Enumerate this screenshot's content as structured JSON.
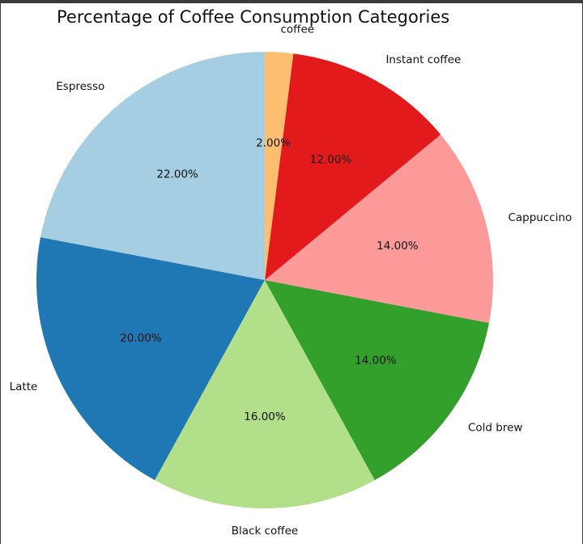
{
  "chart_data": {
    "type": "pie",
    "title": "Percentage of Coffee Consumption Categories",
    "slices": [
      {
        "label": "Espresso",
        "value": 22,
        "pct_label": "22.00%",
        "color": "#a6cee3"
      },
      {
        "label": "Latte",
        "value": 20,
        "pct_label": "20.00%",
        "color": "#1f78b4"
      },
      {
        "label": "Black coffee",
        "value": 16,
        "pct_label": "16.00%",
        "color": "#b2df8a"
      },
      {
        "label": "Cold brew",
        "value": 14,
        "pct_label": "14.00%",
        "color": "#33a02c"
      },
      {
        "label": "Cappuccino",
        "value": 14,
        "pct_label": "14.00%",
        "color": "#fb9a99"
      },
      {
        "label": "Instant coffee",
        "value": 12,
        "pct_label": "12.00%",
        "color": "#e31a1c"
      },
      {
        "label": "coffee",
        "value": 2,
        "pct_label": "2.00%",
        "color": "#fdbf6f"
      }
    ],
    "start_angle": "top",
    "direction": "counterclockwise",
    "legend": "none"
  }
}
